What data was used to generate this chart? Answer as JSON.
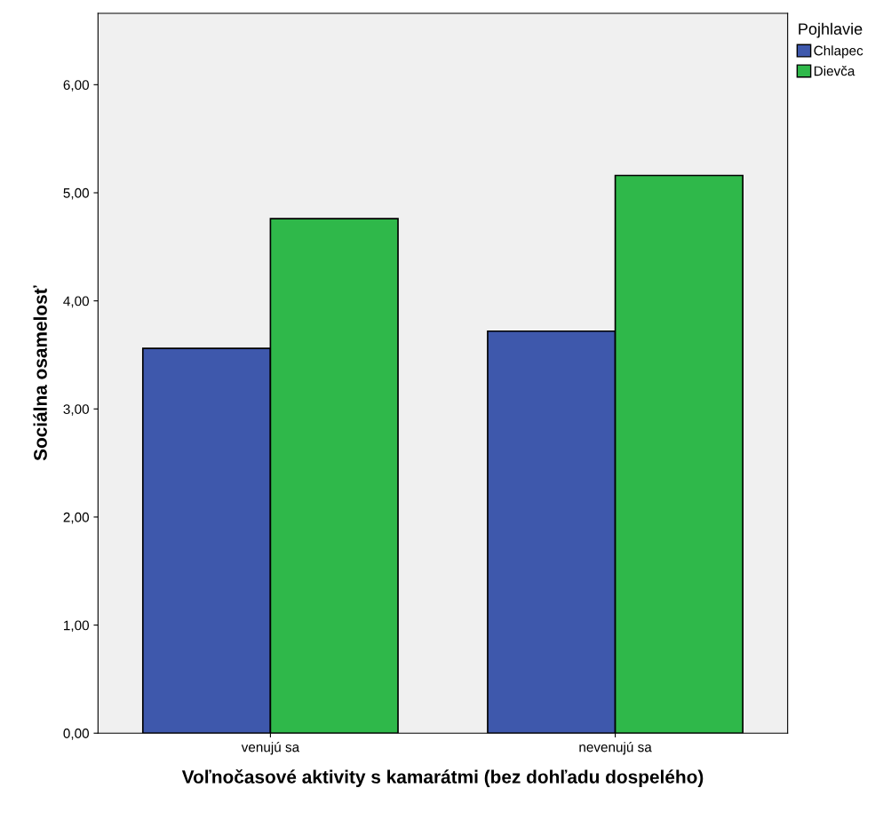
{
  "chart_data": {
    "type": "bar",
    "xlabel": "Voľnočasové aktivity s kamarátmi (bez dohľadu dospelého)",
    "ylabel": "Sociálna osamelosť",
    "legend_title": "Pojhlavie",
    "categories": [
      "venujú sa",
      "nevenujú sa"
    ],
    "series": [
      {
        "name": "Chlapec",
        "color": "#3e58ac",
        "values": [
          3.56,
          3.72
        ]
      },
      {
        "name": "Dievča",
        "color": "#2fb84a",
        "values": [
          4.76,
          5.16
        ]
      }
    ],
    "ylim": [
      0,
      6.66
    ],
    "yticks": [
      {
        "value": 0,
        "label": "0,00"
      },
      {
        "value": 1,
        "label": "1,00"
      },
      {
        "value": 2,
        "label": "2,00"
      },
      {
        "value": 3,
        "label": "3,00"
      },
      {
        "value": 4,
        "label": "4,00"
      },
      {
        "value": 5,
        "label": "5,00"
      },
      {
        "value": 6,
        "label": "6,00"
      }
    ],
    "grid": false,
    "legend": "top right"
  }
}
